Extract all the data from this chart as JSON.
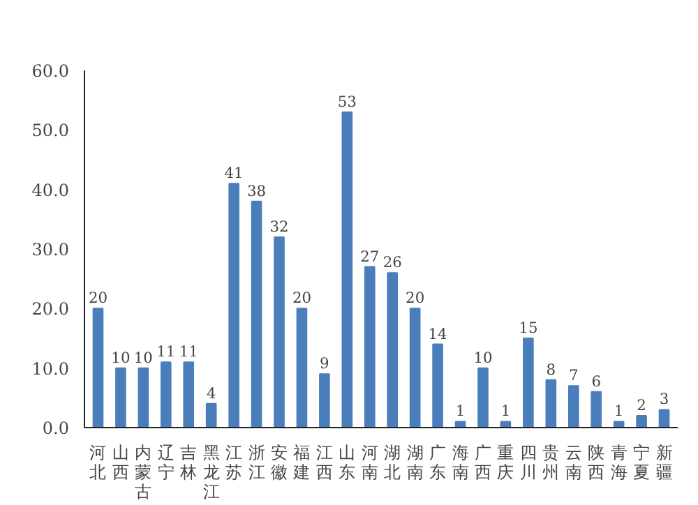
{
  "chart_data": {
    "type": "bar",
    "categories": [
      "河北",
      "山西",
      "内蒙古",
      "辽宁",
      "吉林",
      "黑龙江",
      "江苏",
      "浙江",
      "安徽",
      "福建",
      "江西",
      "山东",
      "河南",
      "湖北",
      "湖南",
      "广东",
      "海南",
      "广西",
      "重庆",
      "四川",
      "贵州",
      "云南",
      "陕西",
      "青海",
      "宁夏",
      "新疆"
    ],
    "values": [
      20,
      10,
      10,
      11,
      11,
      4,
      41,
      38,
      32,
      20,
      9,
      53,
      27,
      26,
      20,
      14,
      1,
      10,
      1,
      15,
      8,
      7,
      6,
      1,
      2,
      3
    ],
    "color": "#4a7ebb",
    "ylim": [
      0,
      60
    ],
    "yticks": [
      {
        "value": 0,
        "label": "0.0"
      },
      {
        "value": 10,
        "label": "10.0"
      },
      {
        "value": 20,
        "label": "20.0"
      },
      {
        "value": 30,
        "label": "30.0"
      },
      {
        "value": 40,
        "label": "40.0"
      },
      {
        "value": 50,
        "label": "50.0"
      },
      {
        "value": 60,
        "label": "60.0"
      }
    ],
    "data_labels": true
  }
}
